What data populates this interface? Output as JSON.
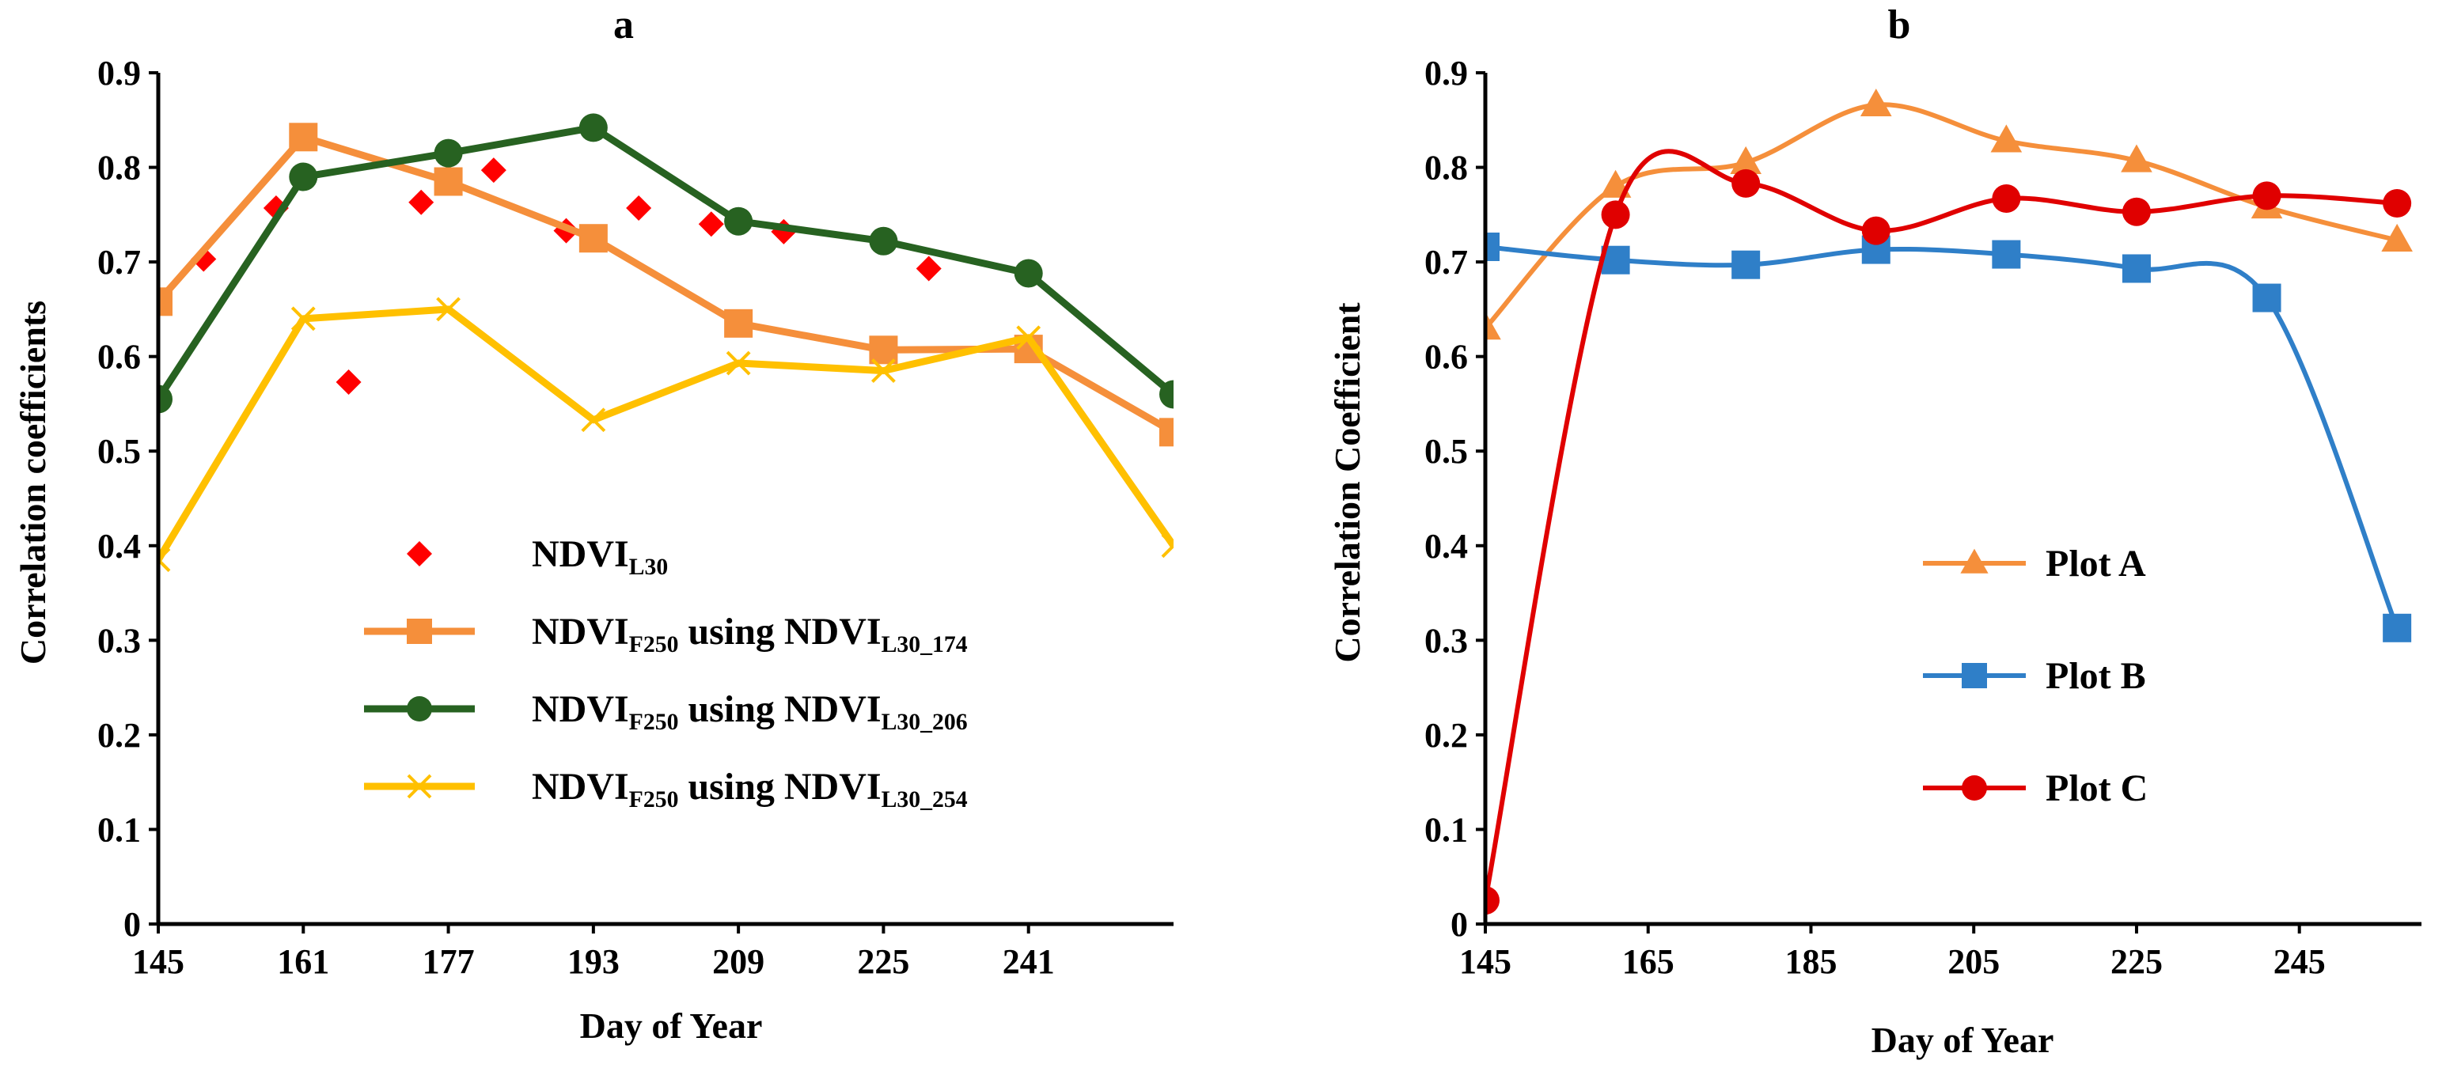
{
  "chart_data": [
    {
      "type": "line",
      "title": "a",
      "xlabel": "Day of Year",
      "ylabel": "Correlation coefficients",
      "xlim": [
        145,
        257
      ],
      "ylim": [
        0,
        0.9
      ],
      "xticks": [
        145,
        161,
        177,
        193,
        209,
        225,
        241
      ],
      "xtick_labels": [
        "145",
        "161",
        "177",
        "193",
        "209",
        "225",
        "241"
      ],
      "yticks": [
        0,
        0.1,
        0.2,
        0.3,
        0.4,
        0.5,
        0.6,
        0.7,
        0.8,
        0.9
      ],
      "ytick_labels": [
        "0",
        "0.1",
        "0.2",
        "0.3",
        "0.4",
        "0.5",
        "0.6",
        "0.7",
        "0.8",
        "0.9"
      ],
      "grid": false,
      "legend_position": "center",
      "series": [
        {
          "name": "NDVI_L30",
          "legend_main": "NDVI",
          "legend_sub": "L30",
          "legend_tail": "",
          "legend_sub2": "",
          "color": "#ff0000",
          "marker": "diamond",
          "line": false,
          "x": [
            150,
            158,
            166,
            174,
            182,
            190,
            198,
            206,
            214,
            230
          ],
          "values": [
            0.703,
            0.757,
            0.573,
            0.763,
            0.797,
            0.733,
            0.757,
            0.74,
            0.732,
            0.693
          ]
        },
        {
          "name": "NDVI_F250 using NDVI_L30_174",
          "legend_main": "NDVI",
          "legend_sub": "F250",
          "legend_tail": " using NDVI",
          "legend_sub2": "L30_174",
          "color": "#f58f3b",
          "marker": "square",
          "line": true,
          "x": [
            145,
            161,
            177,
            193,
            209,
            225,
            241,
            257
          ],
          "values": [
            0.658,
            0.832,
            0.785,
            0.725,
            0.635,
            0.607,
            0.608,
            0.52
          ]
        },
        {
          "name": "NDVI_F250 using NDVI_L30_206",
          "legend_main": "NDVI",
          "legend_sub": "F250",
          "legend_tail": " using NDVI",
          "legend_sub2": "L30_206",
          "color": "#276221",
          "marker": "circle",
          "line": true,
          "x": [
            145,
            161,
            177,
            193,
            209,
            225,
            241,
            257
          ],
          "values": [
            0.555,
            0.79,
            0.815,
            0.842,
            0.743,
            0.722,
            0.688,
            0.56
          ]
        },
        {
          "name": "NDVI_F250 using NDVI_L30_254",
          "legend_main": "NDVI",
          "legend_sub": "F250",
          "legend_tail": " using NDVI",
          "legend_sub2": "L30_254",
          "color": "#ffc000",
          "marker": "x",
          "line": true,
          "x": [
            145,
            161,
            177,
            193,
            209,
            225,
            241,
            257
          ],
          "values": [
            0.385,
            0.64,
            0.65,
            0.533,
            0.593,
            0.585,
            0.62,
            0.4
          ]
        }
      ]
    },
    {
      "type": "line",
      "title": "b",
      "xlabel": "Day of Year",
      "ylabel": "Correlation Coefficient",
      "xlim": [
        145,
        260
      ],
      "ylim": [
        0,
        0.9
      ],
      "xticks": [
        145,
        165,
        185,
        205,
        225,
        245
      ],
      "xtick_labels": [
        "145",
        "165",
        "185",
        "205",
        "225",
        "245"
      ],
      "yticks": [
        0,
        0.1,
        0.2,
        0.3,
        0.4,
        0.5,
        0.6,
        0.7,
        0.8,
        0.9
      ],
      "ytick_labels": [
        "0",
        "0.1",
        "0.2",
        "0.3",
        "0.4",
        "0.5",
        "0.6",
        "0.7",
        "0.8",
        "0.9"
      ],
      "grid": false,
      "legend_position": "center-right",
      "series": [
        {
          "name": "Plot A",
          "color": "#f58f3b",
          "marker": "triangle",
          "line": true,
          "smooth": true,
          "x": [
            145,
            161,
            177,
            193,
            209,
            225,
            241,
            257
          ],
          "values": [
            0.63,
            0.78,
            0.805,
            0.866,
            0.828,
            0.807,
            0.758,
            0.723
          ]
        },
        {
          "name": "Plot B",
          "color": "#2f7fc8",
          "marker": "square",
          "line": true,
          "smooth": true,
          "x": [
            145,
            161,
            177,
            193,
            209,
            225,
            241,
            257
          ],
          "values": [
            0.716,
            0.702,
            0.697,
            0.713,
            0.708,
            0.693,
            0.662,
            0.313
          ]
        },
        {
          "name": "Plot C",
          "color": "#e00000",
          "marker": "circle",
          "line": true,
          "smooth": true,
          "x": [
            145,
            161,
            177,
            193,
            209,
            225,
            241,
            257
          ],
          "values": [
            0.025,
            0.75,
            0.783,
            0.733,
            0.767,
            0.753,
            0.77,
            0.762
          ]
        }
      ]
    }
  ]
}
